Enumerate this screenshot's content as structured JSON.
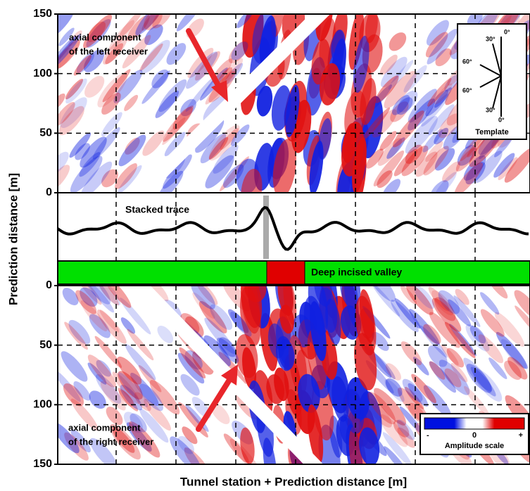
{
  "chart_data": {
    "type": "seismic-section",
    "y_label": "Prediction distance [m]",
    "x_label": "Tunnel station + Prediction distance [m]",
    "grid": true,
    "top_panel": {
      "ylim": [
        0,
        150
      ],
      "yticks": [
        0,
        50,
        100,
        150
      ]
    },
    "bottom_panel": {
      "ylim": [
        0,
        150
      ],
      "yticks": [
        0,
        50,
        100,
        150
      ],
      "y_inverted": true
    },
    "annotations": {
      "left_receiver": [
        "axial component",
        "of the left receiver"
      ],
      "right_receiver": [
        "axial component",
        "of the right receiver"
      ],
      "stacked_trace": "Stacked trace",
      "valley": "Deep incised valley"
    },
    "template": {
      "labels": [
        "30°",
        "0°",
        "60°",
        "60°",
        "30°",
        "0°"
      ],
      "title": "Template"
    },
    "amplitude_scale": {
      "labels": [
        "-",
        "0",
        "+"
      ],
      "title": "Amplitude scale"
    }
  }
}
